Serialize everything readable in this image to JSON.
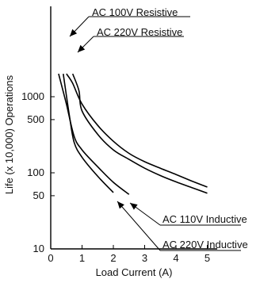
{
  "chart_data": {
    "type": "line",
    "title": "",
    "xlabel": "Load Current (A)",
    "ylabel": "Life (x 10,000) Operations",
    "xlim": [
      0,
      5.5
    ],
    "ylim": [
      10,
      3000
    ],
    "yscale": "log",
    "grid": false,
    "x_ticks": [
      "0",
      "1",
      "2",
      "3",
      "4",
      "5"
    ],
    "y_ticks": [
      "10",
      "50",
      "100",
      "500",
      "1000"
    ],
    "series": [
      {
        "name": "AC 100V Resistive",
        "x": [
          0.5,
          0.7,
          1.0,
          1.5,
          2.0,
          2.5,
          3.0,
          3.5,
          4.0,
          4.5,
          5.0
        ],
        "y": [
          2000,
          1500,
          800,
          420,
          260,
          180,
          140,
          115,
          95,
          78,
          65
        ]
      },
      {
        "name": "AC 220V Resistive",
        "x": [
          0.7,
          0.9,
          1.0,
          1.5,
          2.0,
          2.5,
          3.0,
          3.5,
          4.0,
          4.5,
          5.0
        ],
        "y": [
          2000,
          1200,
          650,
          320,
          200,
          150,
          115,
          92,
          76,
          64,
          54
        ]
      },
      {
        "name": "AC 110V Inductive",
        "x": [
          0.25,
          0.5,
          0.75,
          1.0,
          1.5,
          2.0,
          2.5
        ],
        "y": [
          2000,
          800,
          300,
          200,
          120,
          75,
          52
        ]
      },
      {
        "name": "AC 220V Inductive",
        "x": [
          0.4,
          0.6,
          0.75,
          1.0,
          1.5,
          2.0
        ],
        "y": [
          2000,
          550,
          250,
          160,
          90,
          55
        ]
      }
    ]
  }
}
